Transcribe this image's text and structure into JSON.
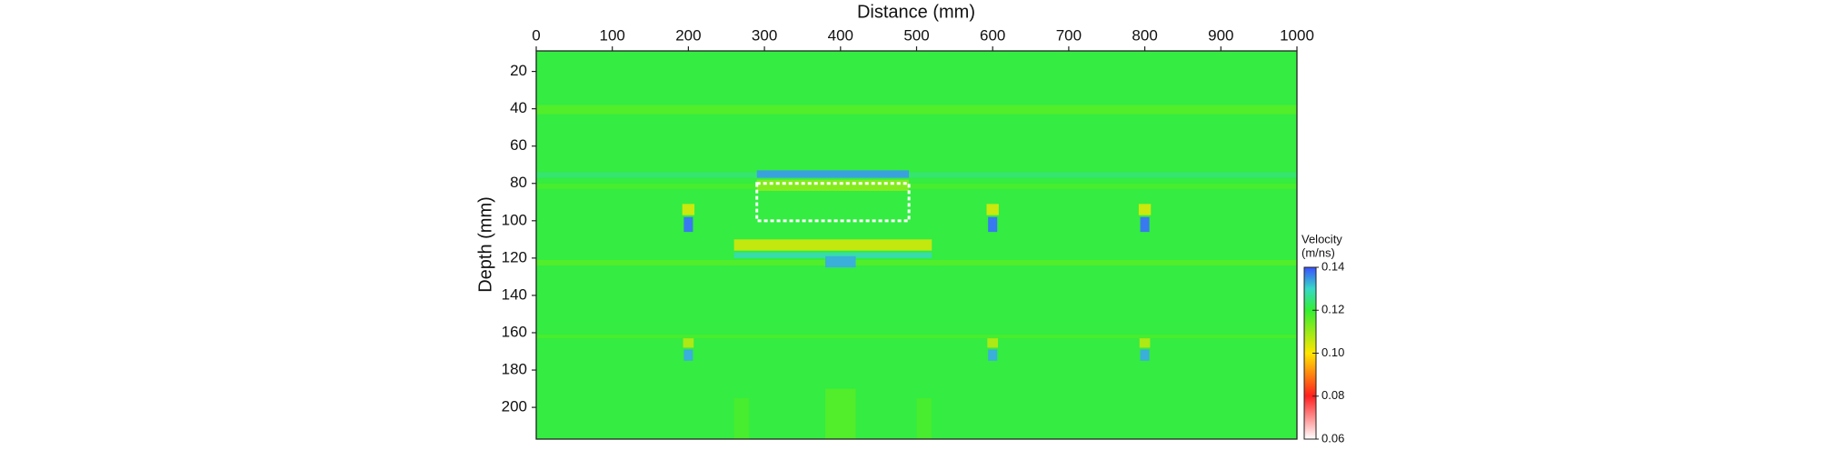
{
  "chart_data": {
    "type": "heatmap",
    "x_label": "Distance (mm)",
    "y_label": "Depth (mm)",
    "colorbar_label": [
      "Velocity",
      "(m/ns)"
    ],
    "xlim": [
      0,
      1000
    ],
    "xticks": [
      0,
      100,
      200,
      300,
      400,
      500,
      600,
      700,
      800,
      900,
      1000
    ],
    "ylim": [
      9,
      217
    ],
    "yticks": [
      20,
      40,
      60,
      80,
      100,
      120,
      140,
      160,
      180,
      200
    ],
    "y_inverted": true,
    "clim": [
      0.06,
      0.14
    ],
    "cticks": [
      0.06,
      0.08,
      {
        "value": 0.1,
        "label": "0.10"
      },
      0.12,
      0.14
    ],
    "colormap": [
      {
        "value": 0.06,
        "color": "#ffffff"
      },
      {
        "value": 0.08,
        "color": "#ff2020"
      },
      {
        "value": 0.1,
        "color": "#ffe600"
      },
      {
        "value": 0.12,
        "color": "#33ee33"
      },
      {
        "value": 0.13,
        "color": "#38d8c8"
      },
      {
        "value": 0.14,
        "color": "#3a50ff"
      }
    ],
    "cells": [
      {
        "x": [
          0,
          1000
        ],
        "y": [
          9,
          217
        ],
        "value": 0.121
      },
      {
        "x": [
          0,
          1000
        ],
        "y": [
          38,
          43
        ],
        "value": 0.117
      },
      {
        "x": [
          0,
          1000
        ],
        "y": [
          74,
          77
        ],
        "value": 0.124
      },
      {
        "x": [
          290,
          490
        ],
        "y": [
          73,
          77
        ],
        "value": 0.134
      },
      {
        "x": [
          0,
          1000
        ],
        "y": [
          80,
          83
        ],
        "value": 0.118
      },
      {
        "x": [
          290,
          490
        ],
        "y": [
          78,
          84
        ],
        "value": 0.112
      },
      {
        "x": [
          260,
          520
        ],
        "y": [
          110,
          116
        ],
        "value": 0.106
      },
      {
        "x": [
          260,
          520
        ],
        "y": [
          117,
          120
        ],
        "value": 0.128
      },
      {
        "x": [
          0,
          1000
        ],
        "y": [
          121,
          124
        ],
        "value": 0.117
      },
      {
        "x": [
          380,
          420
        ],
        "y": [
          119,
          125
        ],
        "value": 0.133
      },
      {
        "x": [
          0,
          1000
        ],
        "y": [
          161,
          163
        ],
        "value": 0.118
      },
      {
        "x": [
          192,
          208
        ],
        "y": [
          91,
          97
        ],
        "value": 0.105
      },
      {
        "x": [
          194,
          206
        ],
        "y": [
          98,
          106
        ],
        "value": 0.137
      },
      {
        "x": [
          592,
          608
        ],
        "y": [
          91,
          97
        ],
        "value": 0.105
      },
      {
        "x": [
          594,
          606
        ],
        "y": [
          98,
          106
        ],
        "value": 0.137
      },
      {
        "x": [
          792,
          808
        ],
        "y": [
          91,
          97
        ],
        "value": 0.105
      },
      {
        "x": [
          794,
          806
        ],
        "y": [
          98,
          106
        ],
        "value": 0.137
      },
      {
        "x": [
          193,
          207
        ],
        "y": [
          163,
          168
        ],
        "value": 0.108
      },
      {
        "x": [
          194,
          206
        ],
        "y": [
          169,
          175
        ],
        "value": 0.133
      },
      {
        "x": [
          593,
          607
        ],
        "y": [
          163,
          168
        ],
        "value": 0.108
      },
      {
        "x": [
          594,
          606
        ],
        "y": [
          169,
          175
        ],
        "value": 0.133
      },
      {
        "x": [
          793,
          807
        ],
        "y": [
          163,
          168
        ],
        "value": 0.108
      },
      {
        "x": [
          794,
          806
        ],
        "y": [
          169,
          175
        ],
        "value": 0.133
      },
      {
        "x": [
          380,
          420
        ],
        "y": [
          190,
          217
        ],
        "value": 0.117
      },
      {
        "x": [
          260,
          280
        ],
        "y": [
          195,
          217
        ],
        "value": 0.118
      },
      {
        "x": [
          500,
          520
        ],
        "y": [
          195,
          217
        ],
        "value": 0.118
      }
    ],
    "annotation_box": {
      "x": [
        290,
        490
      ],
      "y": [
        80,
        100
      ],
      "color": "#ffffff"
    }
  }
}
